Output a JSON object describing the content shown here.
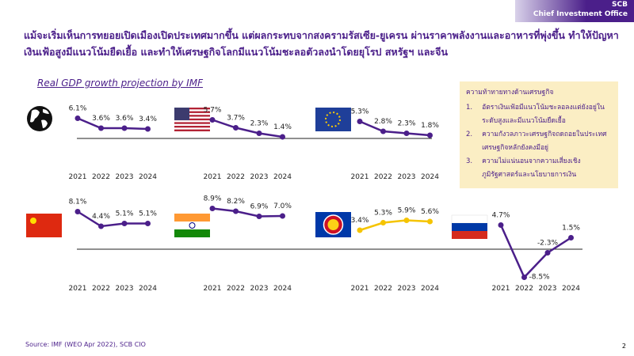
{
  "header": {
    "brand": "SCB",
    "unit": "Chief Investment Office"
  },
  "title_lines": [
    "แม้จะเริ่มเห็นการทยอยเปิดเมืองเปิดประเทศมากขึ้น แต่ผลกระทบจากสงครามรัสเซีย-ยูเครน ผ่านราคาพลังงานและอาหารที่พุ่งขึ้น ทำให้ปัญหา",
    "เงินเฟ้อสูงมีแนวโน้มยืดเยื้อ และทำให้เศรษฐกิจโลกมีแนวโน้มชะลอตัวลงนำโดยยุโรป สหรัฐฯ และจีน"
  ],
  "chart_subtitle": "Real GDP growth projection by IMF",
  "chart_data": [
    {
      "type": "line",
      "categories": [
        "2021",
        "2022",
        "2023",
        "2024"
      ],
      "values": [
        6.1,
        3.6,
        3.6,
        3.4
      ],
      "value_labels": [
        "6.1%",
        "3.6%",
        "3.6%",
        "3.4%"
      ],
      "color": "#4b1f8a"
    },
    {
      "type": "line",
      "categories": [
        "2021",
        "2022",
        "2023",
        "2024"
      ],
      "values": [
        5.7,
        3.7,
        2.3,
        1.4
      ],
      "value_labels": [
        "5.7%",
        "3.7%",
        "2.3%",
        "1.4%"
      ],
      "color": "#4b1f8a"
    },
    {
      "type": "line",
      "categories": [
        "2021",
        "2022",
        "2023",
        "2024"
      ],
      "values": [
        5.3,
        2.8,
        2.3,
        1.8
      ],
      "value_labels": [
        "5.3%",
        "2.8%",
        "2.3%",
        "1.8%"
      ],
      "color": "#4b1f8a"
    },
    {
      "type": "line",
      "categories": [
        "2021",
        "2022",
        "2023",
        "2024"
      ],
      "values": [
        8.1,
        4.4,
        5.1,
        5.1
      ],
      "value_labels": [
        "8.1%",
        "4.4%",
        "5.1%",
        "5.1%"
      ],
      "color": "#4b1f8a"
    },
    {
      "type": "line",
      "categories": [
        "2021",
        "2022",
        "2023",
        "2024"
      ],
      "values": [
        8.9,
        8.2,
        6.9,
        7.0
      ],
      "value_labels": [
        "8.9%",
        "8.2%",
        "6.9%",
        "7.0%"
      ],
      "color": "#4b1f8a"
    },
    {
      "type": "line",
      "categories": [
        "2021",
        "2022",
        "2023",
        "2024"
      ],
      "values": [
        3.4,
        5.3,
        5.9,
        5.6
      ],
      "value_labels": [
        "3.4%",
        "5.3%",
        "5.9%",
        "5.6%"
      ],
      "color": "#f5c400"
    },
    {
      "type": "line",
      "categories": [
        "2021",
        "2022",
        "2023",
        "2024"
      ],
      "values": [
        4.7,
        -8.5,
        -2.3,
        1.5
      ],
      "value_labels": [
        "4.7%",
        "-8.5%",
        "-2.3%",
        "1.5%"
      ],
      "color": "#4b1f8a"
    }
  ],
  "challenges": {
    "title": "ความท้าทายทางด้านเศรษฐกิจ",
    "items": [
      "อัตราเงินเฟ้อมีแนวโน้มชะลอลงแต่ยังอยู่ในระดับสูงและมีแนวโน้มยืดเยื้อ",
      "ความกังวลภาวะเศรษฐกิจถดถอยในประเทศเศรษฐกิจหลักยังคงมีอยู่",
      "ความไม่แน่นอนจากความเสี่ยงเชิงภูมิรัฐศาสตร์และนโยบายการเงิน"
    ],
    "markers": [
      "1.",
      "2.",
      "3."
    ]
  },
  "source": "Source: IMF (WEO Apr 2022), SCB CIO",
  "page_number": "2"
}
